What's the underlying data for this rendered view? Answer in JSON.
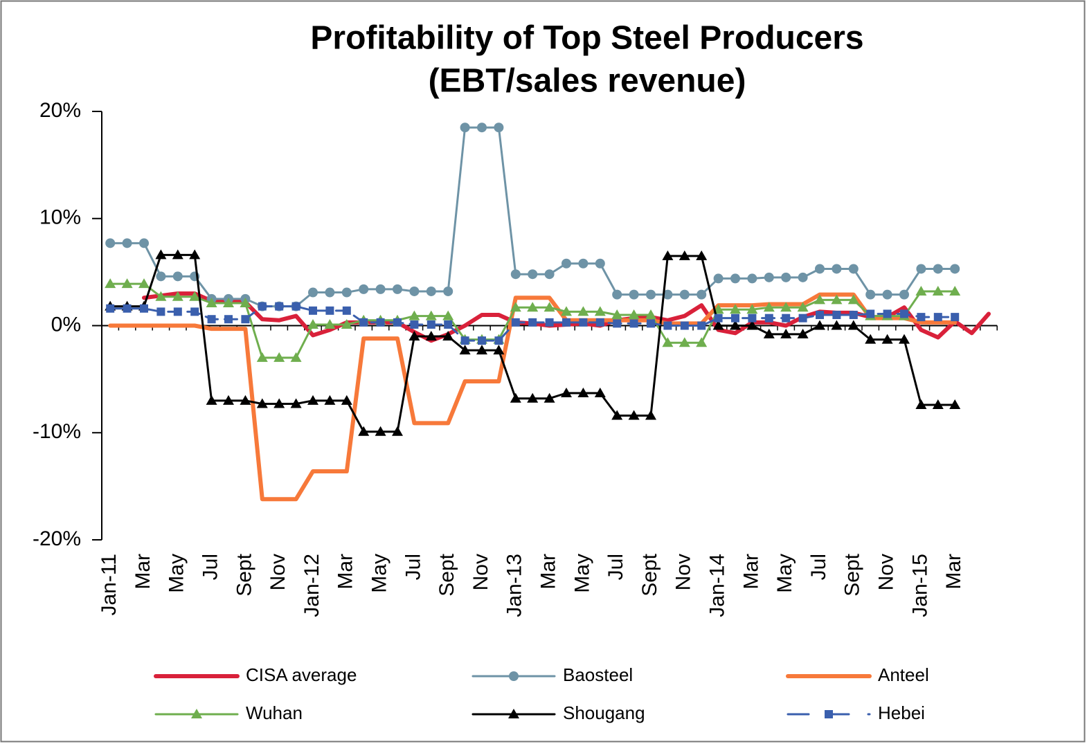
{
  "chart_data": {
    "type": "line",
    "title": "Profitability of Top Steel Producers",
    "subtitle": "(EBT/sales revenue)",
    "categories": [
      "Jan-11",
      null,
      "Mar",
      null,
      "May",
      null,
      "Jul",
      null,
      "Sept",
      null,
      "Nov",
      null,
      "Jan-12",
      null,
      "Mar",
      null,
      "May",
      null,
      "Jul",
      null,
      "Sept",
      null,
      "Nov",
      null,
      "Jan-13",
      null,
      "Mar",
      null,
      "May",
      null,
      "Jul",
      null,
      "Sept",
      null,
      "Nov",
      null,
      "Jan-14",
      null,
      "Mar",
      null,
      "May",
      null,
      "Jul",
      null,
      "Sept",
      null,
      "Nov",
      null,
      "Jan-15",
      null,
      "Mar",
      null,
      null
    ],
    "ylim": [
      -20,
      20
    ],
    "yticks": [
      {
        "value": -20,
        "label": "-20%"
      },
      {
        "value": -10,
        "label": "-10%"
      },
      {
        "value": 0,
        "label": "0%"
      },
      {
        "value": 10,
        "label": "10%"
      },
      {
        "value": 20,
        "label": "20%"
      }
    ],
    "series": [
      {
        "name": "CISA average",
        "color": "#d9213a",
        "line_width": 6,
        "marker": "none",
        "dash": false,
        "values": [
          null,
          null,
          2.6,
          2.8,
          3.0,
          3.0,
          2.3,
          2.3,
          2.2,
          0.6,
          0.5,
          0.9,
          -0.9,
          -0.4,
          0.3,
          0.3,
          0.3,
          0.3,
          -0.6,
          -1.4,
          -0.8,
          0.0,
          1.0,
          1.0,
          0.3,
          0.2,
          0.0,
          0.1,
          0.2,
          0.0,
          0.5,
          0.7,
          0.8,
          0.5,
          0.9,
          1.9,
          -0.4,
          -0.7,
          0.3,
          0.3,
          0.0,
          0.8,
          1.3,
          1.2,
          1.2,
          0.8,
          0.8,
          1.7,
          -0.4,
          -1.1,
          0.4,
          -0.7,
          1.1
        ]
      },
      {
        "name": "Baosteel",
        "color": "#6e93a6",
        "line_width": 3,
        "marker": "circle",
        "dash": false,
        "values": [
          7.7,
          7.7,
          7.7,
          4.6,
          4.6,
          4.6,
          2.5,
          2.5,
          2.5,
          1.8,
          1.8,
          1.8,
          3.1,
          3.1,
          3.1,
          3.4,
          3.4,
          3.4,
          3.2,
          3.2,
          3.2,
          18.5,
          18.5,
          18.5,
          4.8,
          4.8,
          4.8,
          5.8,
          5.8,
          5.8,
          2.9,
          2.9,
          2.9,
          2.9,
          2.9,
          2.9,
          4.4,
          4.4,
          4.4,
          4.5,
          4.5,
          4.5,
          5.3,
          5.3,
          5.3,
          2.9,
          2.9,
          2.9,
          5.3,
          5.3,
          5.3,
          null,
          null
        ]
      },
      {
        "name": "Anteel",
        "color": "#f7793a",
        "line_width": 6,
        "marker": "none",
        "dash": false,
        "values": [
          0,
          0,
          0,
          0,
          0,
          0,
          -0.3,
          -0.3,
          -0.3,
          -16.2,
          -16.2,
          -16.2,
          -13.6,
          -13.6,
          -13.6,
          -1.2,
          -1.2,
          -1.2,
          -9.1,
          -9.1,
          -9.1,
          -5.2,
          -5.2,
          -5.2,
          2.6,
          2.6,
          2.6,
          0.5,
          0.5,
          0.5,
          0.5,
          0.5,
          0.5,
          0.2,
          0.2,
          0.2,
          1.9,
          1.9,
          1.9,
          2.0,
          2.0,
          2.0,
          2.9,
          2.9,
          2.9,
          0.7,
          0.7,
          0.7,
          0.3,
          0.3,
          0.3,
          null,
          null
        ]
      },
      {
        "name": "Wuhan",
        "color": "#6fae4e",
        "line_width": 3,
        "marker": "triangle",
        "dash": false,
        "values": [
          3.9,
          3.9,
          3.9,
          2.7,
          2.7,
          2.7,
          2.1,
          2.1,
          2.1,
          -3.0,
          -3.0,
          -3.0,
          0.1,
          0.1,
          0.1,
          0.5,
          0.5,
          0.5,
          0.9,
          0.9,
          0.9,
          -1.3,
          -1.3,
          -1.3,
          1.7,
          1.7,
          1.7,
          1.3,
          1.3,
          1.3,
          1.0,
          1.0,
          1.0,
          -1.6,
          -1.6,
          -1.6,
          1.5,
          1.5,
          1.5,
          1.7,
          1.7,
          1.7,
          2.4,
          2.4,
          2.4,
          0.9,
          0.9,
          0.9,
          3.2,
          3.2,
          3.2,
          null,
          null
        ]
      },
      {
        "name": "Shougang",
        "color": "#000000",
        "line_width": 3,
        "marker": "triangle",
        "dash": false,
        "values": [
          1.8,
          1.8,
          1.8,
          6.6,
          6.6,
          6.6,
          -7.0,
          -7.0,
          -7.0,
          -7.3,
          -7.3,
          -7.3,
          -7.0,
          -7.0,
          -7.0,
          -9.9,
          -9.9,
          -9.9,
          -1.0,
          -1.0,
          -1.0,
          -2.3,
          -2.3,
          -2.3,
          -6.8,
          -6.8,
          -6.8,
          -6.3,
          -6.3,
          -6.3,
          -8.4,
          -8.4,
          -8.4,
          6.5,
          6.5,
          6.5,
          0.0,
          0.0,
          0.0,
          -0.8,
          -0.8,
          -0.8,
          0.0,
          0.0,
          0.0,
          -1.3,
          -1.3,
          -1.3,
          -7.4,
          -7.4,
          -7.4,
          null,
          null
        ]
      },
      {
        "name": "Hebei",
        "color": "#3a5fad",
        "line_width": 3,
        "marker": "square",
        "dash": true,
        "values": [
          1.6,
          1.6,
          1.6,
          1.3,
          1.3,
          1.3,
          0.6,
          0.6,
          0.6,
          1.8,
          1.8,
          1.8,
          1.4,
          1.4,
          1.4,
          0.3,
          0.3,
          0.3,
          0.1,
          0.1,
          0.1,
          -1.4,
          -1.4,
          -1.4,
          0.3,
          0.3,
          0.3,
          0.3,
          0.3,
          0.3,
          0.2,
          0.2,
          0.2,
          0.0,
          0.0,
          0.0,
          0.7,
          0.7,
          0.7,
          0.7,
          0.7,
          0.7,
          1.0,
          1.0,
          1.0,
          1.1,
          1.1,
          1.1,
          0.8,
          0.8,
          0.8,
          null,
          null
        ]
      }
    ]
  }
}
